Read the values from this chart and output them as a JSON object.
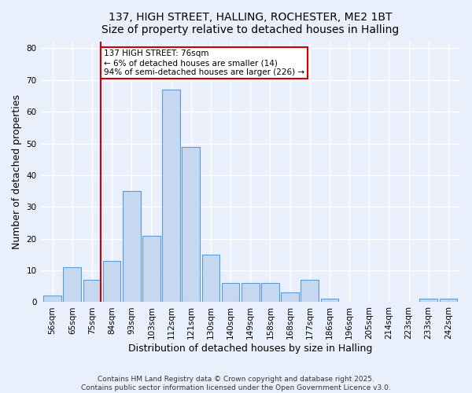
{
  "title_line1": "137, HIGH STREET, HALLING, ROCHESTER, ME2 1BT",
  "title_line2": "Size of property relative to detached houses in Halling",
  "xlabel": "Distribution of detached houses by size in Halling",
  "ylabel": "Number of detached properties",
  "categories": [
    "56sqm",
    "65sqm",
    "75sqm",
    "84sqm",
    "93sqm",
    "103sqm",
    "112sqm",
    "121sqm",
    "130sqm",
    "140sqm",
    "149sqm",
    "158sqm",
    "168sqm",
    "177sqm",
    "186sqm",
    "196sqm",
    "205sqm",
    "214sqm",
    "223sqm",
    "233sqm",
    "242sqm"
  ],
  "values": [
    2,
    11,
    7,
    13,
    35,
    21,
    67,
    49,
    15,
    6,
    6,
    6,
    3,
    7,
    1,
    0,
    0,
    0,
    0,
    1,
    1
  ],
  "bar_color": "#c5d8f0",
  "bar_edge_color": "#5b9bd5",
  "property_index": 2,
  "property_line_color": "#cc0000",
  "annotation_text": "137 HIGH STREET: 76sqm\n← 6% of detached houses are smaller (14)\n94% of semi-detached houses are larger (226) →",
  "annotation_box_color": "#ffffff",
  "annotation_border_color": "#cc0000",
  "ylim": [
    0,
    82
  ],
  "yticks": [
    0,
    10,
    20,
    30,
    40,
    50,
    60,
    70,
    80
  ],
  "footer_line1": "Contains HM Land Registry data © Crown copyright and database right 2025.",
  "footer_line2": "Contains public sector information licensed under the Open Government Licence v3.0.",
  "bg_color": "#eaf0fb",
  "plot_bg_color": "#eaf0fb",
  "grid_color": "#ffffff",
  "title_fontsize": 10,
  "axis_label_fontsize": 9,
  "tick_fontsize": 7.5,
  "annotation_fontsize": 7.5,
  "footer_fontsize": 6.5
}
